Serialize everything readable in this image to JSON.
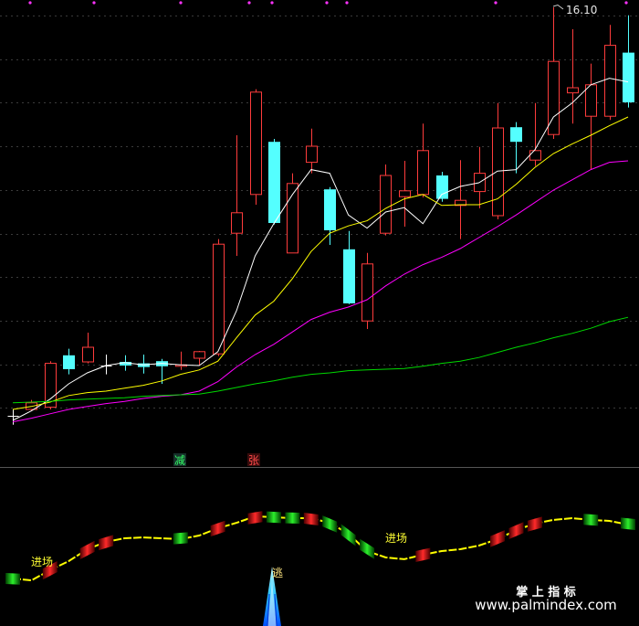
{
  "chart_data": {
    "type": "candlestick",
    "high_label": "16.10",
    "ylim": [
      9.8125,
      16.2
    ],
    "grid": true,
    "ohlc": [
      [
        10.51,
        10.6,
        10.39,
        10.51
      ],
      [
        10.6,
        10.73,
        10.58,
        10.69
      ],
      [
        10.63,
        11.26,
        10.6,
        11.23
      ],
      [
        11.34,
        11.43,
        11.08,
        11.15
      ],
      [
        11.25,
        11.65,
        11.23,
        11.45
      ],
      [
        11.2,
        11.35,
        11.08,
        11.2
      ],
      [
        11.25,
        11.34,
        11.13,
        11.2
      ],
      [
        11.23,
        11.35,
        11.09,
        11.18
      ],
      [
        11.26,
        11.29,
        10.95,
        11.19
      ],
      [
        11.19,
        11.39,
        11.14,
        11.21
      ],
      [
        11.3,
        11.4,
        11.2,
        11.39
      ],
      [
        11.36,
        12.93,
        11.33,
        12.86
      ],
      [
        13.01,
        14.35,
        12.7,
        13.29
      ],
      [
        13.54,
        14.98,
        13.4,
        14.94
      ],
      [
        14.26,
        14.3,
        13.13,
        13.15
      ],
      [
        12.74,
        13.83,
        12.74,
        13.69
      ],
      [
        13.98,
        14.44,
        13.83,
        14.2
      ],
      [
        13.61,
        13.64,
        12.85,
        13.05
      ],
      [
        12.79,
        13.04,
        12.04,
        12.05
      ],
      [
        11.81,
        12.74,
        11.7,
        12.59
      ],
      [
        13.01,
        13.95,
        12.98,
        13.8
      ],
      [
        13.51,
        14.0,
        13.1,
        13.59
      ],
      [
        13.54,
        14.51,
        13.5,
        14.14
      ],
      [
        13.8,
        13.85,
        13.44,
        13.48
      ],
      [
        13.39,
        14.01,
        12.93,
        13.46
      ],
      [
        13.58,
        14.19,
        13.35,
        13.83
      ],
      [
        13.25,
        14.79,
        13.2,
        14.45
      ],
      [
        14.46,
        14.53,
        13.83,
        14.26
      ],
      [
        14.01,
        14.79,
        13.93,
        14.14
      ],
      [
        14.36,
        16.1,
        14.3,
        15.36
      ],
      [
        14.93,
        15.8,
        14.51,
        15.0
      ],
      [
        14.61,
        15.33,
        13.88,
        15.04
      ],
      [
        14.61,
        15.86,
        14.56,
        15.58
      ],
      [
        15.48,
        15.99,
        14.73,
        14.8
      ]
    ],
    "moving_averages": [
      {
        "color": "#ffffff",
        "values": [
          10.45,
          10.58,
          10.74,
          10.95,
          11.1,
          11.2,
          11.24,
          11.21,
          11.23,
          11.21,
          11.2,
          11.39,
          11.95,
          12.7,
          13.14,
          13.54,
          13.88,
          13.83,
          13.26,
          13.08,
          13.3,
          13.36,
          13.14,
          13.54,
          13.65,
          13.7,
          13.86,
          13.88,
          14.15,
          14.6,
          14.79,
          15.04,
          15.13,
          15.08
        ]
      },
      {
        "color": "#ffff00",
        "values": [
          10.6,
          10.64,
          10.7,
          10.79,
          10.83,
          10.85,
          10.89,
          10.93,
          10.99,
          11.08,
          11.14,
          11.26,
          11.58,
          11.89,
          12.08,
          12.39,
          12.76,
          13.01,
          13.11,
          13.18,
          13.35,
          13.48,
          13.54,
          13.39,
          13.4,
          13.4,
          13.48,
          13.68,
          13.91,
          14.1,
          14.23,
          14.35,
          14.48,
          14.6
        ]
      },
      {
        "color": "#ff00ff",
        "values": [
          10.43,
          10.48,
          10.54,
          10.6,
          10.64,
          10.68,
          10.71,
          10.75,
          10.78,
          10.8,
          10.85,
          10.98,
          11.18,
          11.35,
          11.49,
          11.66,
          11.83,
          11.93,
          12.0,
          12.1,
          12.29,
          12.45,
          12.58,
          12.68,
          12.8,
          12.95,
          13.1,
          13.26,
          13.43,
          13.6,
          13.74,
          13.88,
          13.98,
          14.0
        ]
      },
      {
        "color": "#00d800",
        "values": [
          10.69,
          10.7,
          10.71,
          10.73,
          10.74,
          10.75,
          10.76,
          10.78,
          10.79,
          10.8,
          10.81,
          10.85,
          10.9,
          10.95,
          10.99,
          11.04,
          11.08,
          11.1,
          11.13,
          11.14,
          11.15,
          11.16,
          11.19,
          11.23,
          11.26,
          11.31,
          11.38,
          11.45,
          11.51,
          11.58,
          11.64,
          11.71,
          11.8,
          11.86
        ]
      }
    ],
    "indicator": {
      "ylim": [
        0,
        100
      ],
      "values": [
        29.9,
        28.7,
        35.1,
        40.8,
        48.3,
        52.9,
        55.2,
        55.7,
        55.2,
        54.6,
        56.9,
        61.5,
        64.9,
        69.0,
        68.4,
        67.8,
        67.8,
        64.9,
        58.0,
        47.1,
        43.1,
        42.0,
        44.8,
        47.1,
        48.3,
        50.6,
        54.6,
        60.3,
        64.4,
        66.7,
        67.8,
        66.7,
        66.1,
        63.8
      ],
      "states": [
        "down",
        null,
        "up",
        null,
        "up",
        "up",
        null,
        null,
        null,
        "down",
        null,
        "up",
        null,
        "up",
        "down",
        "down",
        "up",
        "down",
        "down",
        "down",
        null,
        null,
        "up",
        null,
        null,
        null,
        "up",
        "up",
        "up",
        null,
        null,
        "down",
        null,
        "down"
      ]
    }
  },
  "signals": {
    "reduce": "减",
    "rise": "张",
    "entry": [
      "进场",
      "进场"
    ],
    "escape": "逃"
  },
  "watermark": {
    "title": "掌 上 指 标",
    "url": "www.palmindex.com"
  },
  "colors": {
    "background": "#000000",
    "rise": "#ff3c3c",
    "fall": "#54ffff",
    "doji": "#ffffff",
    "grid": "#3a3a3a",
    "indicator_line": "#ffff00",
    "marker": "#ff33ff"
  }
}
